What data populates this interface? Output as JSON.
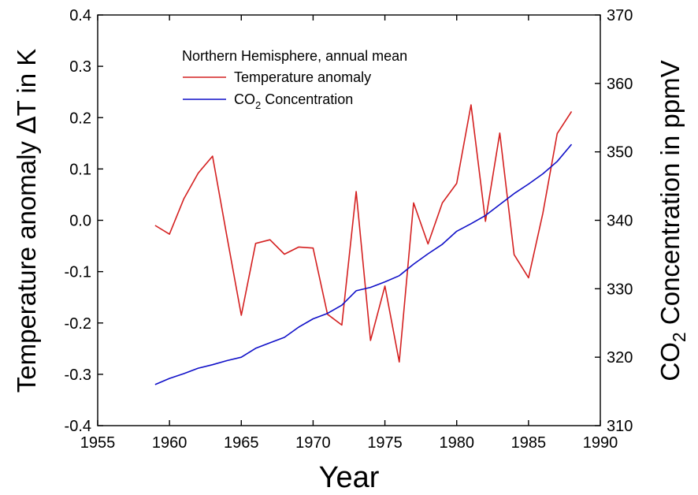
{
  "chart_data": {
    "type": "line",
    "title": "",
    "xlabel": "Year",
    "ylabel_left": {
      "main": "Temperature anomaly ",
      "delta": "Δ",
      "rest": "T in K"
    },
    "ylabel_right": {
      "pre": "CO",
      "sub": "2",
      "post": " Concentration in ppmV"
    },
    "xlim": [
      1955,
      1990
    ],
    "xticks": [
      1955,
      1960,
      1965,
      1970,
      1975,
      1980,
      1985,
      1990
    ],
    "ylim_left": [
      -0.4,
      0.4
    ],
    "yticks_left": [
      "-0.4",
      "-0.3",
      "-0.2",
      "-0.1",
      "0.0",
      "0.1",
      "0.2",
      "0.3",
      "0.4"
    ],
    "ylim_right": [
      310,
      370
    ],
    "yticks_right": [
      "310",
      "320",
      "330",
      "340",
      "350",
      "360",
      "370"
    ],
    "legend": {
      "title": "Northern Hemisphere, annual mean",
      "placement": "top-left",
      "entries": [
        {
          "label": "Temperature anomaly"
        },
        {
          "pre": "CO",
          "sub": "2",
          "post": " Concentration"
        }
      ]
    },
    "series": [
      {
        "name": "Temperature anomaly",
        "axis": "left",
        "color": "#d42020",
        "x": [
          1959,
          1960,
          1961,
          1962,
          1963,
          1964,
          1965,
          1966,
          1967,
          1968,
          1969,
          1970,
          1971,
          1972,
          1973,
          1974,
          1975,
          1976,
          1977,
          1978,
          1979,
          1980,
          1981,
          1982,
          1983,
          1984,
          1985,
          1986,
          1987,
          1988
        ],
        "y": [
          -0.01,
          -0.027,
          0.042,
          0.092,
          0.125,
          -0.032,
          -0.185,
          -0.045,
          -0.038,
          -0.066,
          -0.052,
          -0.054,
          -0.183,
          -0.204,
          0.056,
          -0.234,
          -0.128,
          -0.276,
          0.034,
          -0.046,
          0.034,
          0.072,
          0.225,
          -0.002,
          0.17,
          -0.067,
          -0.112,
          0.014,
          0.169,
          0.212
        ]
      },
      {
        "name": "CO2 Concentration",
        "axis": "right",
        "color": "#1010c8",
        "x": [
          1959,
          1960,
          1961,
          1962,
          1963,
          1964,
          1965,
          1966,
          1967,
          1968,
          1969,
          1970,
          1971,
          1972,
          1973,
          1974,
          1975,
          1976,
          1977,
          1978,
          1979,
          1980,
          1981,
          1982,
          1983,
          1984,
          1985,
          1986,
          1987,
          1988
        ],
        "y": [
          316.0,
          316.9,
          317.6,
          318.4,
          318.9,
          319.5,
          320.0,
          321.3,
          322.1,
          322.9,
          324.4,
          325.6,
          326.4,
          327.6,
          329.7,
          330.2,
          331.0,
          331.9,
          333.6,
          335.1,
          336.5,
          338.4,
          339.5,
          340.7,
          342.3,
          343.9,
          345.3,
          346.8,
          348.6,
          351.1
        ]
      }
    ]
  }
}
